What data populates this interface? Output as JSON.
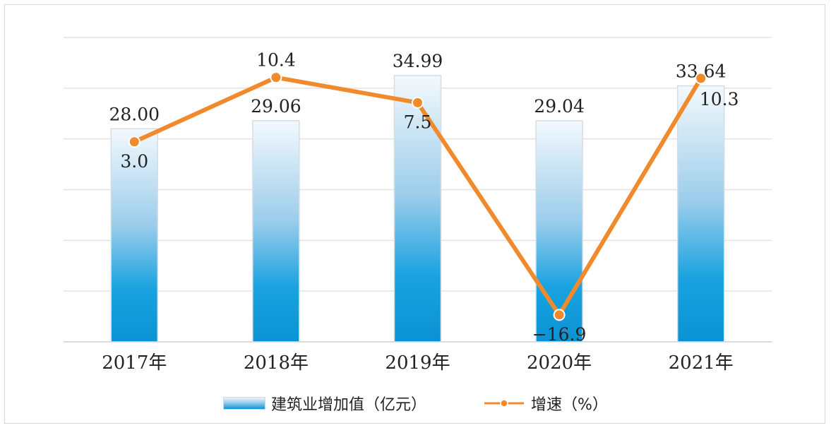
{
  "chart_data": {
    "type": "bar+line",
    "categories": [
      "2017年",
      "2018年",
      "2019年",
      "2020年",
      "2021年"
    ],
    "series": [
      {
        "name": "建筑业增加值（亿元）",
        "type": "bar",
        "values": [
          28.0,
          29.06,
          34.99,
          29.04,
          33.64
        ],
        "labels": [
          "28.00",
          "29.06",
          "34.99",
          "29.04",
          "33.64"
        ]
      },
      {
        "name": "增速（%）",
        "type": "line",
        "values": [
          3.0,
          10.4,
          7.5,
          -16.9,
          10.3
        ],
        "labels": [
          "3.0",
          "10.4",
          "7.5",
          "−16.9",
          "10.3"
        ]
      }
    ],
    "bar_axis_range": [
      0,
      40
    ],
    "line_axis_range": [
      -20,
      15
    ],
    "grid": true,
    "legend_position": "bottom",
    "colors": {
      "bar_top": "#eef6fb",
      "bar_bottom": "#0a96d8",
      "line": "#f08a2c",
      "grid": "#e3e3e3"
    }
  },
  "legend": {
    "bar_label": "建筑业增加值（亿元）",
    "line_label": "增速（%）"
  }
}
